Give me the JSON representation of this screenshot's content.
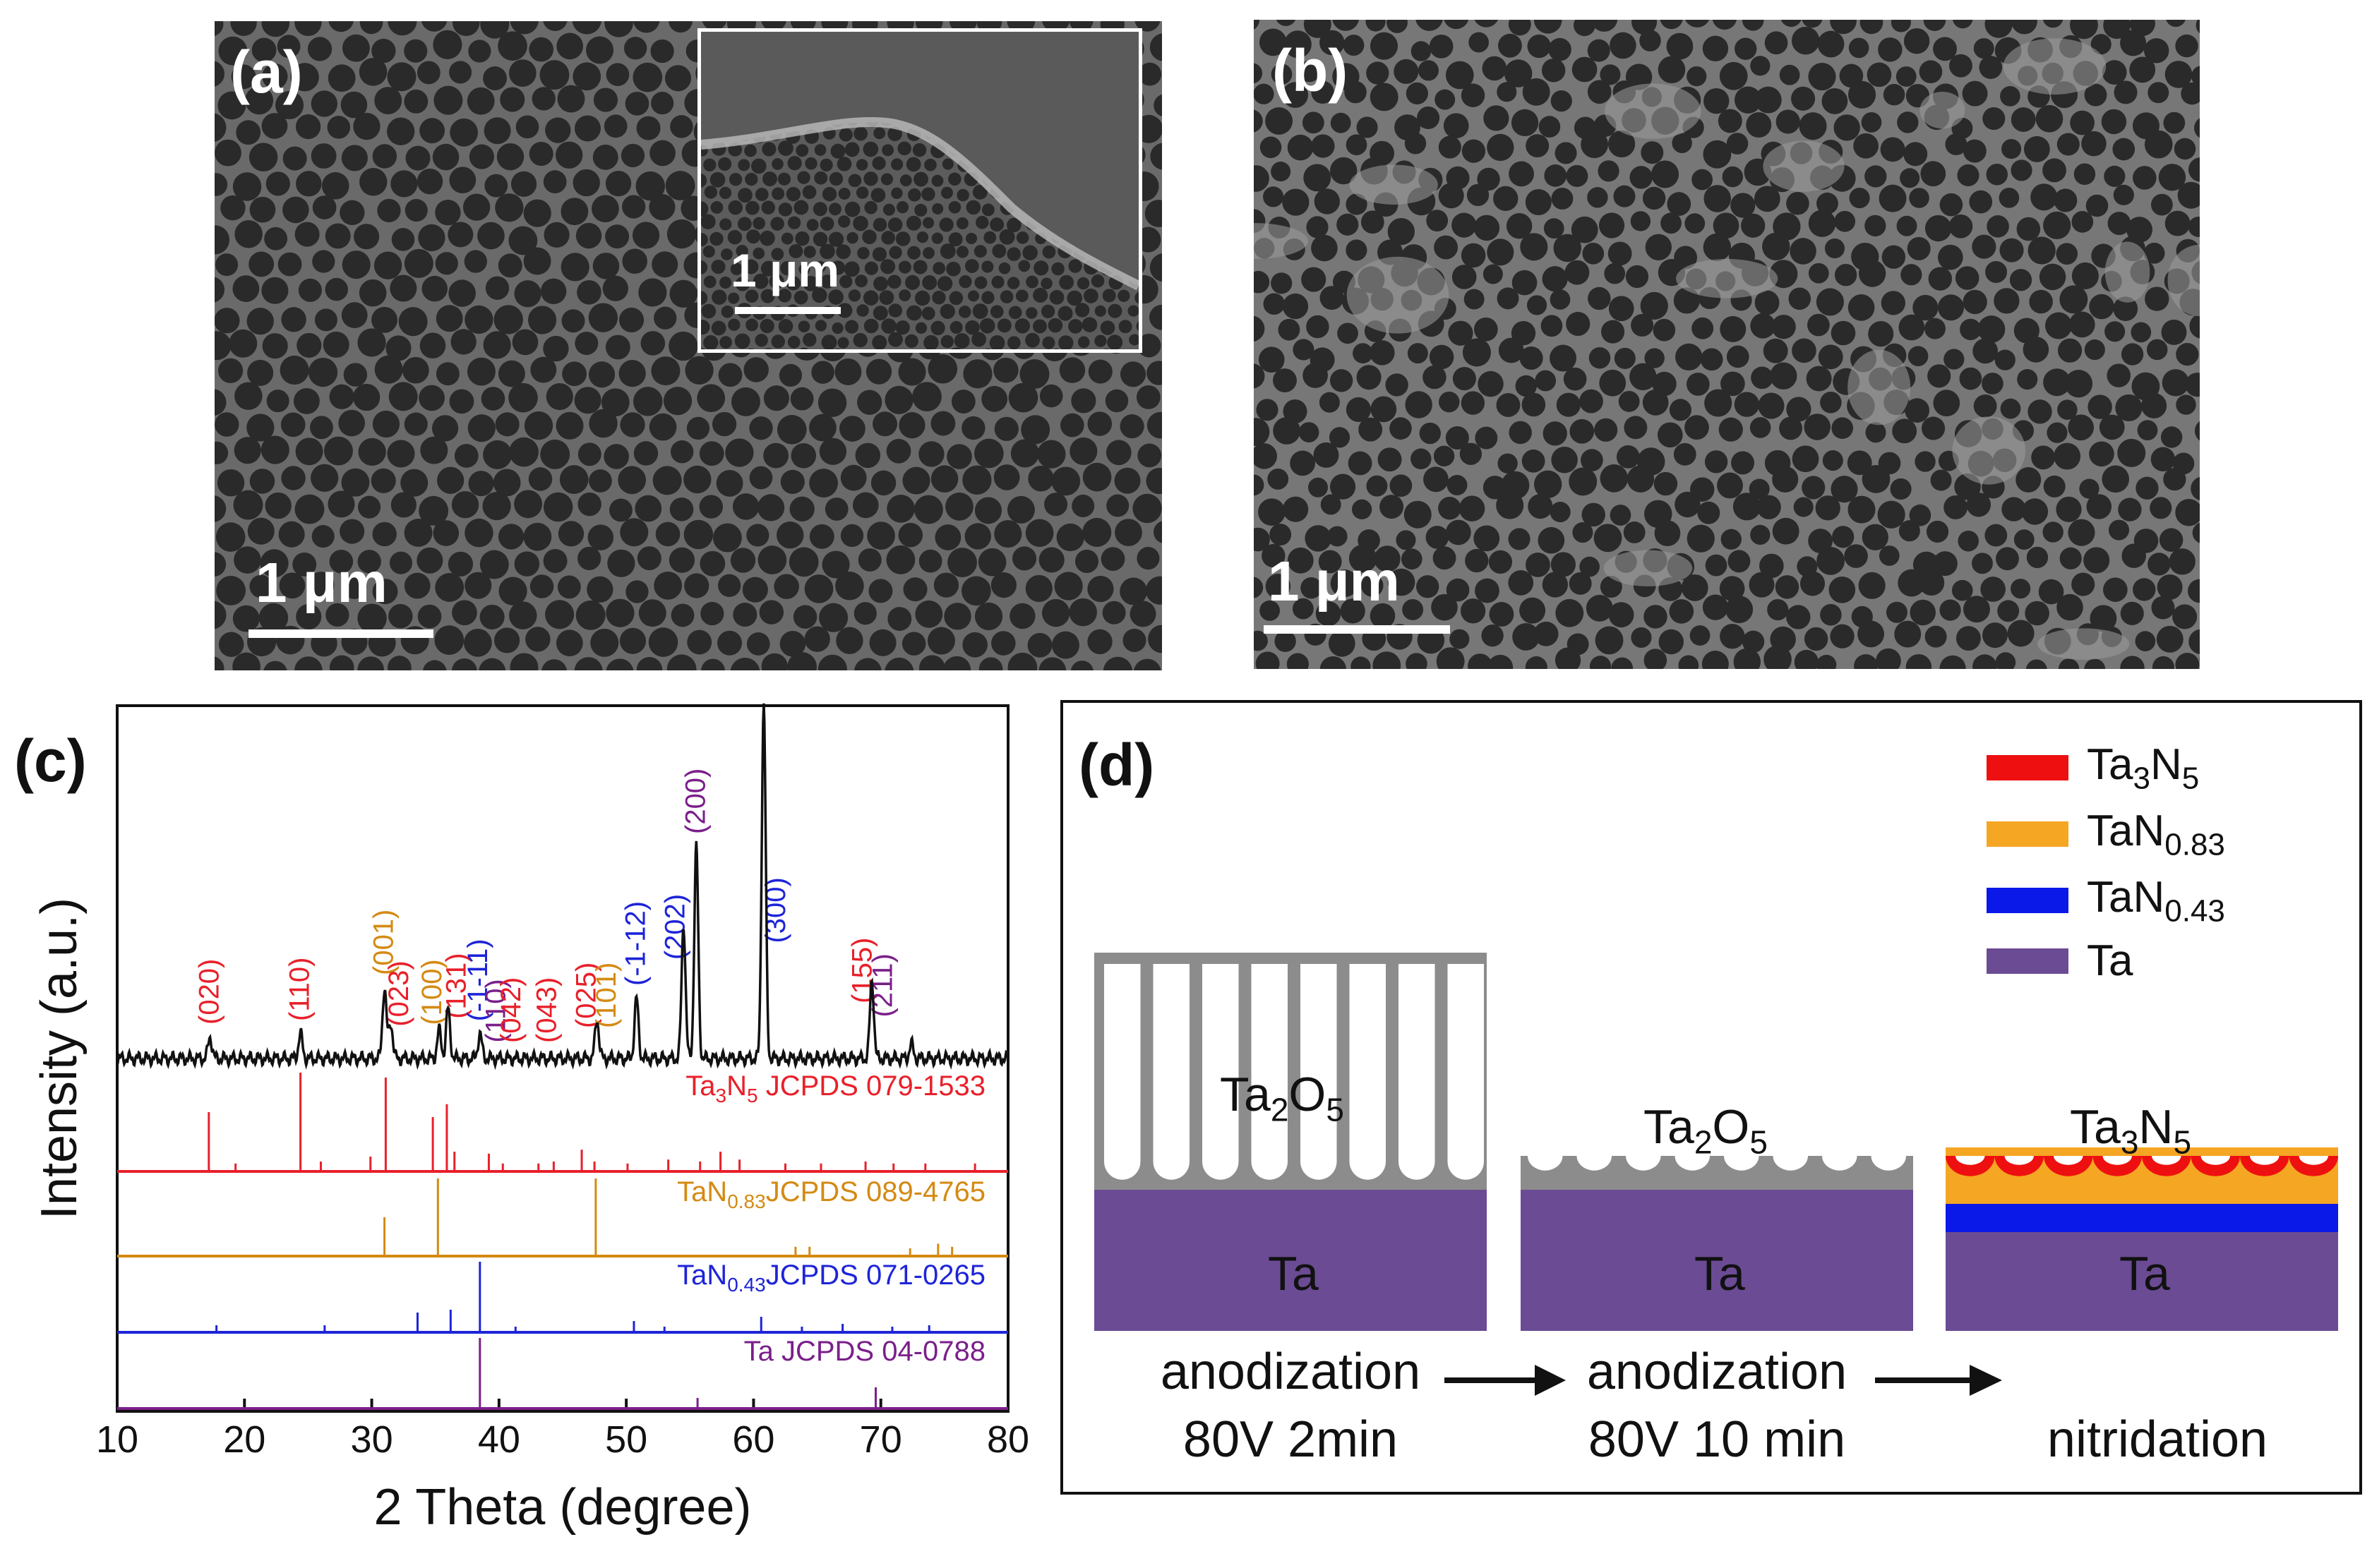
{
  "panel_a": {
    "label": "(a)",
    "scale": "1 μm",
    "inset_scale": "1 μm"
  },
  "panel_b": {
    "label": "(b)",
    "scale": "1 μm"
  },
  "panel_c": {
    "label": "(c)",
    "chart_data": {
      "type": "line",
      "title": "",
      "xlabel": "2 Theta (degree)",
      "ylabel": "Intensity (a.u.)",
      "xlim": [
        10,
        80
      ],
      "xticks": [
        10,
        20,
        30,
        40,
        50,
        60,
        70,
        80
      ],
      "colors": {
        "Ta3N5": "#e8202a",
        "TaN083": "#d48a12",
        "TaN043": "#1d24d8",
        "Ta": "#7a1f8a"
      },
      "measured_peaks": [
        {
          "x": 17.3,
          "y": 0.06
        },
        {
          "x": 24.4,
          "y": 0.07
        },
        {
          "x": 31.0,
          "y": 0.2
        },
        {
          "x": 31.5,
          "y": 0.1
        },
        {
          "x": 35.3,
          "y": 0.08
        },
        {
          "x": 36.0,
          "y": 0.14
        },
        {
          "x": 38.5,
          "y": 0.07
        },
        {
          "x": 47.7,
          "y": 0.11
        },
        {
          "x": 50.8,
          "y": 0.17
        },
        {
          "x": 54.5,
          "y": 0.38
        },
        {
          "x": 55.5,
          "y": 0.6
        },
        {
          "x": 60.8,
          "y": 1.0
        },
        {
          "x": 69.3,
          "y": 0.22
        },
        {
          "x": 72.4,
          "y": 0.04
        }
      ],
      "peak_labels": [
        {
          "x": 17.3,
          "text": "(020)",
          "phase": "Ta3N5"
        },
        {
          "x": 24.4,
          "text": "(110)",
          "phase": "Ta3N5"
        },
        {
          "x": 31.0,
          "text": "(001)",
          "phase": "TaN083"
        },
        {
          "x": 32.2,
          "text": "(023)",
          "phase": "Ta3N5"
        },
        {
          "x": 34.8,
          "text": "(100)",
          "phase": "TaN083"
        },
        {
          "x": 36.7,
          "text": "(131)",
          "phase": "Ta3N5"
        },
        {
          "x": 38.4,
          "text": "(-1-11)",
          "phase": "TaN043"
        },
        {
          "x": 39.8,
          "text": "(110)",
          "phase": "Ta"
        },
        {
          "x": 41.0,
          "text": "(042)",
          "phase": "Ta3N5"
        },
        {
          "x": 43.8,
          "text": "(043)",
          "phase": "Ta3N5"
        },
        {
          "x": 46.9,
          "text": "(025)",
          "phase": "Ta3N5"
        },
        {
          "x": 48.5,
          "text": "(101)",
          "phase": "TaN083"
        },
        {
          "x": 50.8,
          "text": "(-1-12)",
          "phase": "TaN043"
        },
        {
          "x": 53.9,
          "text": "(202)",
          "phase": "TaN043"
        },
        {
          "x": 55.5,
          "text": "(200)",
          "phase": "Ta"
        },
        {
          "x": 61.8,
          "text": "(300)",
          "phase": "TaN043"
        },
        {
          "x": 68.6,
          "text": "(155)",
          "phase": "Ta3N5"
        },
        {
          "x": 70.2,
          "text": "(211)",
          "phase": "Ta"
        }
      ],
      "references": [
        {
          "name": "Ta3N5 JCPDS 079-1533",
          "label_main": "Ta",
          "label_sub": "3",
          "label_mid": "N",
          "label_sub2": "5",
          "label_rest": " JCPDS 079-1533",
          "phase": "Ta3N5",
          "sticks": [
            [
              17.2,
              0.6
            ],
            [
              19.3,
              0.08
            ],
            [
              24.4,
              1.0
            ],
            [
              26.0,
              0.1
            ],
            [
              29.9,
              0.15
            ],
            [
              31.1,
              0.95
            ],
            [
              34.8,
              0.55
            ],
            [
              35.9,
              0.68
            ],
            [
              36.5,
              0.2
            ],
            [
              39.2,
              0.18
            ],
            [
              40.3,
              0.08
            ],
            [
              43.1,
              0.08
            ],
            [
              44.3,
              0.1
            ],
            [
              46.5,
              0.22
            ],
            [
              47.5,
              0.1
            ],
            [
              50.1,
              0.08
            ],
            [
              53.3,
              0.12
            ],
            [
              55.8,
              0.1
            ],
            [
              57.4,
              0.2
            ],
            [
              58.9,
              0.12
            ],
            [
              62.5,
              0.08
            ],
            [
              65.3,
              0.08
            ],
            [
              68.8,
              0.1
            ],
            [
              71.0,
              0.08
            ],
            [
              73.5,
              0.08
            ],
            [
              77.4,
              0.08
            ]
          ]
        },
        {
          "name": "TaN0.83JCPDS 089-4765",
          "label_main": "TaN",
          "label_sub": "0.83",
          "label_rest": "JCPDS 089-4765",
          "phase": "TaN083",
          "sticks": [
            [
              31.0,
              0.5
            ],
            [
              35.2,
              1.0
            ],
            [
              47.6,
              1.0
            ],
            [
              63.3,
              0.12
            ],
            [
              64.4,
              0.12
            ],
            [
              72.3,
              0.1
            ],
            [
              74.5,
              0.16
            ],
            [
              75.6,
              0.12
            ]
          ]
        },
        {
          "name": "TaN0.43JCPDS 071-0265",
          "label_main": "TaN",
          "label_sub": "0.43",
          "label_rest": "JCPDS 071-0265",
          "phase": "TaN043",
          "sticks": [
            [
              17.8,
              0.1
            ],
            [
              26.3,
              0.1
            ],
            [
              33.6,
              0.28
            ],
            [
              36.2,
              0.32
            ],
            [
              38.5,
              1.0
            ],
            [
              41.3,
              0.08
            ],
            [
              50.6,
              0.16
            ],
            [
              53.0,
              0.08
            ],
            [
              60.6,
              0.22
            ],
            [
              63.8,
              0.08
            ],
            [
              67.0,
              0.12
            ],
            [
              70.9,
              0.08
            ],
            [
              73.8,
              0.1
            ]
          ]
        },
        {
          "name": "Ta JCPDS 04-0788",
          "label_main": "Ta JCPDS 04-0788",
          "label_sub": "",
          "label_rest": "",
          "phase": "Ta",
          "sticks": [
            [
              38.5,
              1.0
            ],
            [
              55.6,
              0.15
            ],
            [
              69.6,
              0.3
            ]
          ]
        }
      ]
    }
  },
  "panel_d": {
    "label": "(d)",
    "legend": [
      {
        "main": "Ta",
        "sub": "3",
        "mid": "N",
        "sub2": "5",
        "color": "#ee1010"
      },
      {
        "main": "TaN",
        "sub": "0.83",
        "mid": "",
        "sub2": "",
        "color": "#f5a623"
      },
      {
        "main": "TaN",
        "sub": "0.43",
        "mid": "",
        "sub2": "",
        "color": "#0a18e8"
      },
      {
        "main": "Ta",
        "sub": "",
        "mid": "",
        "sub2": "",
        "color": "#6b4b94"
      }
    ],
    "stage1": {
      "oxide_main": "Ta",
      "oxide_sub": "2",
      "oxide_mid": "O",
      "oxide_sub2": "5",
      "substrate": "Ta",
      "caption_line1": "anodization",
      "caption_line2": "80V 2min"
    },
    "stage2": {
      "oxide_main": "Ta",
      "oxide_sub": "2",
      "oxide_mid": "O",
      "oxide_sub2": "5",
      "substrate": "Ta",
      "caption_line1": "anodization",
      "caption_line2": "80V 10 min"
    },
    "stage3": {
      "top_main": "Ta",
      "top_sub": "3",
      "top_mid": "N",
      "top_sub2": "5",
      "substrate": "Ta",
      "caption": "nitridation"
    },
    "colors": {
      "oxide": "#8c8c8c",
      "substrate": "#6b4b94",
      "ta3n5": "#ee1010",
      "tan083": "#f5a623",
      "tan043": "#0a18e8"
    }
  }
}
